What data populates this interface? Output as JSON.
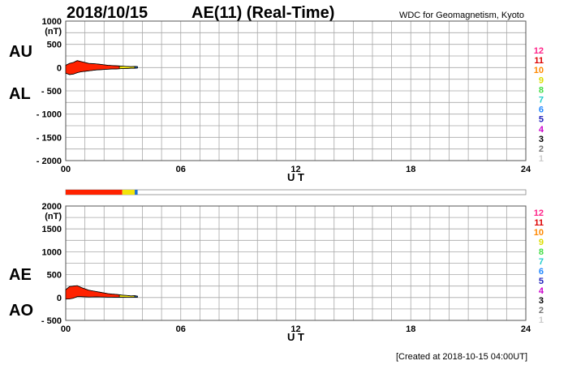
{
  "header": {
    "date": "2018/10/15",
    "title": "AE(11) (Real-Time)",
    "source": "WDC for Geomagnetism, Kyoto"
  },
  "footer": {
    "created": "[Created at 2018-10-15 04:00UT]"
  },
  "colors": {
    "index_red": "#ff2200",
    "index_yellow": "#f2e40a",
    "index_blue": "#1f6fd0",
    "grid": "#a8a8a8",
    "station_colors": [
      "#cccccc",
      "#777777",
      "#000000",
      "#cc00cc",
      "#2222bb",
      "#2288ff",
      "#22cccc",
      "#44dd44",
      "#dddd00",
      "#ff8800",
      "#dd0000",
      "#ff2288"
    ]
  },
  "station_count_labels": [
    "12",
    "11",
    "10",
    "9",
    "8",
    "7",
    "6",
    "5",
    "4",
    "3",
    "2",
    "1"
  ],
  "time_ticks": [
    "00",
    "06",
    "12",
    "18",
    "24"
  ],
  "coverage_bar": {
    "segments": [
      {
        "start": 0.0,
        "end": 2.95,
        "color": "#ff2200"
      },
      {
        "start": 2.95,
        "end": 3.6,
        "color": "#f2e40a"
      },
      {
        "start": 3.6,
        "end": 3.75,
        "color": "#1f6fd0"
      }
    ]
  },
  "chart_data": [
    {
      "type": "area",
      "panel": "AU/AL",
      "side_labels": [
        "AU",
        "AL"
      ],
      "xlabel": "U T",
      "ylabel": "(nT)",
      "xlim": [
        0,
        24
      ],
      "ylim": [
        -2000,
        1000
      ],
      "y_ticks": [
        "1000",
        "500",
        "0",
        "- 500",
        "- 1000",
        "- 1500",
        "- 2000"
      ],
      "y_tick_values": [
        1000,
        500,
        0,
        -500,
        -1000,
        -1500,
        -2000
      ],
      "x_ticks": [
        "00",
        "06",
        "12",
        "18",
        "24"
      ],
      "series": [
        {
          "name": "AU",
          "x": [
            0.0,
            0.2,
            0.4,
            0.6,
            0.8,
            1.0,
            1.2,
            1.4,
            1.6,
            1.8,
            2.0,
            2.2,
            2.4,
            2.6,
            2.8,
            3.0,
            3.2,
            3.4,
            3.6,
            3.75
          ],
          "values": [
            50,
            90,
            110,
            150,
            130,
            110,
            90,
            85,
            80,
            70,
            60,
            50,
            45,
            40,
            35,
            30,
            25,
            20,
            25,
            20
          ]
        },
        {
          "name": "AL",
          "x": [
            0.0,
            0.2,
            0.4,
            0.6,
            0.8,
            1.0,
            1.2,
            1.4,
            1.6,
            1.8,
            2.0,
            2.2,
            2.4,
            2.6,
            2.8,
            3.0,
            3.2,
            3.4,
            3.6,
            3.75
          ],
          "values": [
            -120,
            -150,
            -140,
            -110,
            -90,
            -80,
            -70,
            -60,
            -50,
            -45,
            -40,
            -35,
            -30,
            -30,
            -25,
            -20,
            -20,
            -15,
            -15,
            -10
          ]
        }
      ]
    },
    {
      "type": "area",
      "panel": "AE/AO",
      "side_labels": [
        "AE",
        "AO"
      ],
      "xlabel": "U T",
      "ylabel": "(nT)",
      "xlim": [
        0,
        24
      ],
      "ylim": [
        -500,
        2000
      ],
      "y_ticks": [
        "2000",
        "1500",
        "1000",
        "500",
        "0",
        "- 500"
      ],
      "y_tick_values": [
        2000,
        1500,
        1000,
        500,
        0,
        -500
      ],
      "x_ticks": [
        "00",
        "06",
        "12",
        "18",
        "24"
      ],
      "series": [
        {
          "name": "AE",
          "x": [
            0.0,
            0.2,
            0.4,
            0.6,
            0.8,
            1.0,
            1.2,
            1.4,
            1.6,
            1.8,
            2.0,
            2.2,
            2.4,
            2.6,
            2.8,
            3.0,
            3.2,
            3.4,
            3.6,
            3.75
          ],
          "values": [
            170,
            240,
            250,
            260,
            220,
            190,
            160,
            145,
            130,
            115,
            100,
            85,
            75,
            70,
            60,
            50,
            45,
            35,
            40,
            30
          ]
        },
        {
          "name": "AO",
          "x": [
            0.0,
            0.2,
            0.4,
            0.6,
            0.8,
            1.0,
            1.2,
            1.4,
            1.6,
            1.8,
            2.0,
            2.2,
            2.4,
            2.6,
            2.8,
            3.0,
            3.2,
            3.4,
            3.6,
            3.75
          ],
          "values": [
            -35,
            -30,
            -15,
            20,
            20,
            15,
            10,
            12,
            15,
            12,
            10,
            8,
            8,
            5,
            5,
            5,
            3,
            3,
            5,
            5
          ]
        }
      ]
    }
  ]
}
